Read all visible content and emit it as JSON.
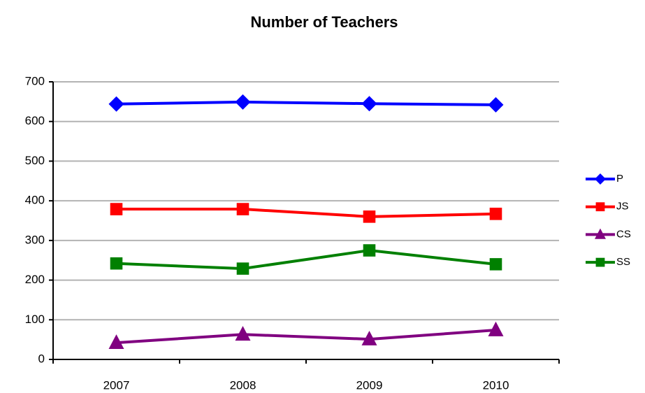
{
  "chart_data": {
    "type": "line",
    "title": "Number of Teachers",
    "categories": [
      "2007",
      "2008",
      "2009",
      "2010"
    ],
    "series": [
      {
        "name": "P",
        "color": "#0000ff",
        "marker": "diamond",
        "values": [
          644,
          649,
          645,
          642
        ]
      },
      {
        "name": "JS",
        "color": "#ff0000",
        "marker": "square",
        "values": [
          379,
          379,
          360,
          367
        ]
      },
      {
        "name": "CS",
        "color": "#800080",
        "marker": "triangle",
        "values": [
          42,
          63,
          51,
          74
        ]
      },
      {
        "name": "SS",
        "color": "#008000",
        "marker": "square",
        "values": [
          242,
          229,
          275,
          240
        ]
      }
    ],
    "ylim": [
      0,
      700
    ],
    "yticks": [
      0,
      100,
      200,
      300,
      400,
      500,
      600,
      700
    ],
    "grid": true,
    "legend": "right"
  }
}
